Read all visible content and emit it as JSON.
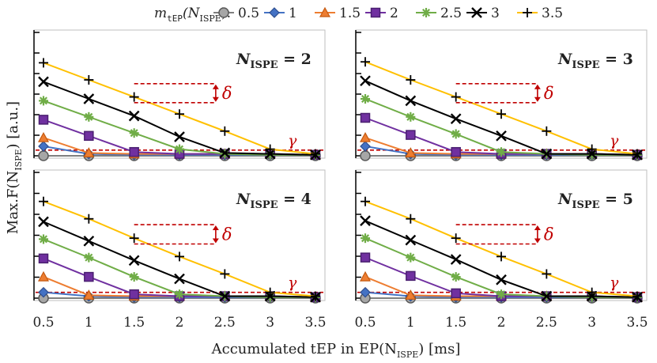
{
  "chart_data": {
    "type": "line",
    "legend": {
      "title_main": "m",
      "title_sub": "tEP",
      "title_rest_open": "(N",
      "title_rest_sub": "ISPE",
      "title_rest_close": "):",
      "placement": "top"
    },
    "xlabel": "Accumulated tEP in EP(N",
    "xlabel_sub": "ISPE",
    "xlabel_tail": ") [ms]",
    "ylabel": "Max.F(N",
    "ylabel_sub": "ISPE",
    "ylabel_tail": ") [a.u.]",
    "x": [
      0.5,
      1,
      1.5,
      2,
      2.5,
      3,
      3.5
    ],
    "x_tick_labels": [
      "0.5",
      "1",
      "1.5",
      "2",
      "2.5",
      "3",
      "3.5"
    ],
    "ylim": [
      0,
      6.5
    ],
    "y_tick_count": 6,
    "grid": false,
    "annotations": {
      "delta_symbol": "δ",
      "gamma_symbol": "γ",
      "gamma_level": 0.3,
      "delta_range": [
        2.8,
        3.8
      ],
      "delta_x": [
        1.5,
        2.4
      ],
      "color": "#c00000"
    },
    "panels": [
      {
        "label_main": "N",
        "label_sub": "ISPE",
        "label_value": " = 2",
        "series": [
          {
            "name": "0.5",
            "color": "#7f7f7f",
            "marker": "circle",
            "values": [
              0.0,
              0.0,
              0.0,
              0.0,
              0.0,
              0.0,
              0.0
            ]
          },
          {
            "name": "1",
            "color": "#4472c4",
            "marker": "diamond",
            "values": [
              0.5,
              0.1,
              0.05,
              0.05,
              0.05,
              0.05,
              0.05
            ]
          },
          {
            "name": "1.5",
            "color": "#ed7d31",
            "marker": "triangle",
            "values": [
              0.95,
              0.15,
              0.1,
              0.1,
              0.1,
              0.1,
              0.05
            ]
          },
          {
            "name": "2",
            "color": "#7030a0",
            "marker": "square",
            "values": [
              1.9,
              1.05,
              0.2,
              0.1,
              0.1,
              0.1,
              0.05
            ]
          },
          {
            "name": "2.5",
            "color": "#70ad47",
            "marker": "asterisk",
            "values": [
              2.9,
              2.05,
              1.2,
              0.35,
              0.1,
              0.05,
              0.05
            ]
          },
          {
            "name": "3",
            "color": "#000000",
            "marker": "x",
            "values": [
              3.9,
              3.0,
              2.1,
              1.0,
              0.15,
              0.1,
              0.05
            ]
          },
          {
            "name": "3.5",
            "color": "#ffc000",
            "marker": "plus",
            "values": [
              4.9,
              4.0,
              3.1,
              2.2,
              1.3,
              0.35,
              0.1
            ]
          }
        ]
      },
      {
        "label_main": "N",
        "label_sub": "ISPE",
        "label_value": " = 3",
        "series": [
          {
            "name": "0.5",
            "color": "#7f7f7f",
            "marker": "circle",
            "values": [
              0.0,
              0.0,
              0.0,
              0.0,
              0.0,
              0.0,
              0.0
            ]
          },
          {
            "name": "1",
            "color": "#4472c4",
            "marker": "diamond",
            "values": [
              0.5,
              0.1,
              0.05,
              0.05,
              0.05,
              0.05,
              0.05
            ]
          },
          {
            "name": "1.5",
            "color": "#ed7d31",
            "marker": "triangle",
            "values": [
              0.95,
              0.15,
              0.1,
              0.1,
              0.1,
              0.1,
              0.05
            ]
          },
          {
            "name": "2",
            "color": "#7030a0",
            "marker": "square",
            "values": [
              2.0,
              1.1,
              0.2,
              0.1,
              0.1,
              0.1,
              0.05
            ]
          },
          {
            "name": "2.5",
            "color": "#70ad47",
            "marker": "asterisk",
            "values": [
              3.0,
              2.05,
              1.15,
              0.2,
              0.1,
              0.05,
              0.05
            ]
          },
          {
            "name": "3",
            "color": "#000000",
            "marker": "x",
            "values": [
              3.95,
              2.9,
              1.95,
              1.05,
              0.1,
              0.1,
              0.05
            ]
          },
          {
            "name": "3.5",
            "color": "#ffc000",
            "marker": "plus",
            "values": [
              4.95,
              4.0,
              3.1,
              2.2,
              1.3,
              0.35,
              0.1
            ]
          }
        ]
      },
      {
        "label_main": "N",
        "label_sub": "ISPE",
        "label_value": " = 4",
        "series": [
          {
            "name": "0.5",
            "color": "#7f7f7f",
            "marker": "circle",
            "values": [
              0.0,
              0.0,
              0.0,
              0.0,
              0.0,
              0.0,
              0.0
            ]
          },
          {
            "name": "1",
            "color": "#4472c4",
            "marker": "diamond",
            "values": [
              0.3,
              0.1,
              0.05,
              0.05,
              0.05,
              0.05,
              0.05
            ]
          },
          {
            "name": "1.5",
            "color": "#ed7d31",
            "marker": "triangle",
            "values": [
              1.1,
              0.15,
              0.1,
              0.1,
              0.1,
              0.1,
              0.05
            ]
          },
          {
            "name": "2",
            "color": "#7030a0",
            "marker": "square",
            "values": [
              2.05,
              1.1,
              0.2,
              0.1,
              0.1,
              0.1,
              0.05
            ]
          },
          {
            "name": "2.5",
            "color": "#70ad47",
            "marker": "asterisk",
            "values": [
              3.05,
              2.1,
              1.1,
              0.2,
              0.1,
              0.05,
              0.05
            ]
          },
          {
            "name": "3",
            "color": "#000000",
            "marker": "x",
            "values": [
              3.95,
              2.95,
              1.95,
              1.0,
              0.1,
              0.1,
              0.05
            ]
          },
          {
            "name": "3.5",
            "color": "#ffc000",
            "marker": "plus",
            "values": [
              5.0,
              4.1,
              3.1,
              2.15,
              1.25,
              0.3,
              0.1
            ]
          }
        ]
      },
      {
        "label_main": "N",
        "label_sub": "ISPE",
        "label_value": " = 5",
        "series": [
          {
            "name": "0.5",
            "color": "#7f7f7f",
            "marker": "circle",
            "values": [
              0.0,
              0.0,
              0.0,
              0.0,
              0.0,
              0.0,
              0.0
            ]
          },
          {
            "name": "1",
            "color": "#4472c4",
            "marker": "diamond",
            "values": [
              0.3,
              0.1,
              0.05,
              0.05,
              0.05,
              0.05,
              0.05
            ]
          },
          {
            "name": "1.5",
            "color": "#ed7d31",
            "marker": "triangle",
            "values": [
              1.1,
              0.15,
              0.1,
              0.1,
              0.1,
              0.1,
              0.05
            ]
          },
          {
            "name": "2",
            "color": "#7030a0",
            "marker": "square",
            "values": [
              2.1,
              1.15,
              0.25,
              0.1,
              0.1,
              0.1,
              0.05
            ]
          },
          {
            "name": "2.5",
            "color": "#70ad47",
            "marker": "asterisk",
            "values": [
              3.1,
              2.1,
              1.1,
              0.2,
              0.1,
              0.05,
              0.05
            ]
          },
          {
            "name": "3",
            "color": "#000000",
            "marker": "x",
            "values": [
              4.0,
              3.0,
              2.0,
              0.95,
              0.1,
              0.1,
              0.05
            ]
          },
          {
            "name": "3.5",
            "color": "#ffc000",
            "marker": "plus",
            "values": [
              5.0,
              4.1,
              3.1,
              2.15,
              1.25,
              0.3,
              0.1
            ]
          }
        ]
      }
    ]
  }
}
